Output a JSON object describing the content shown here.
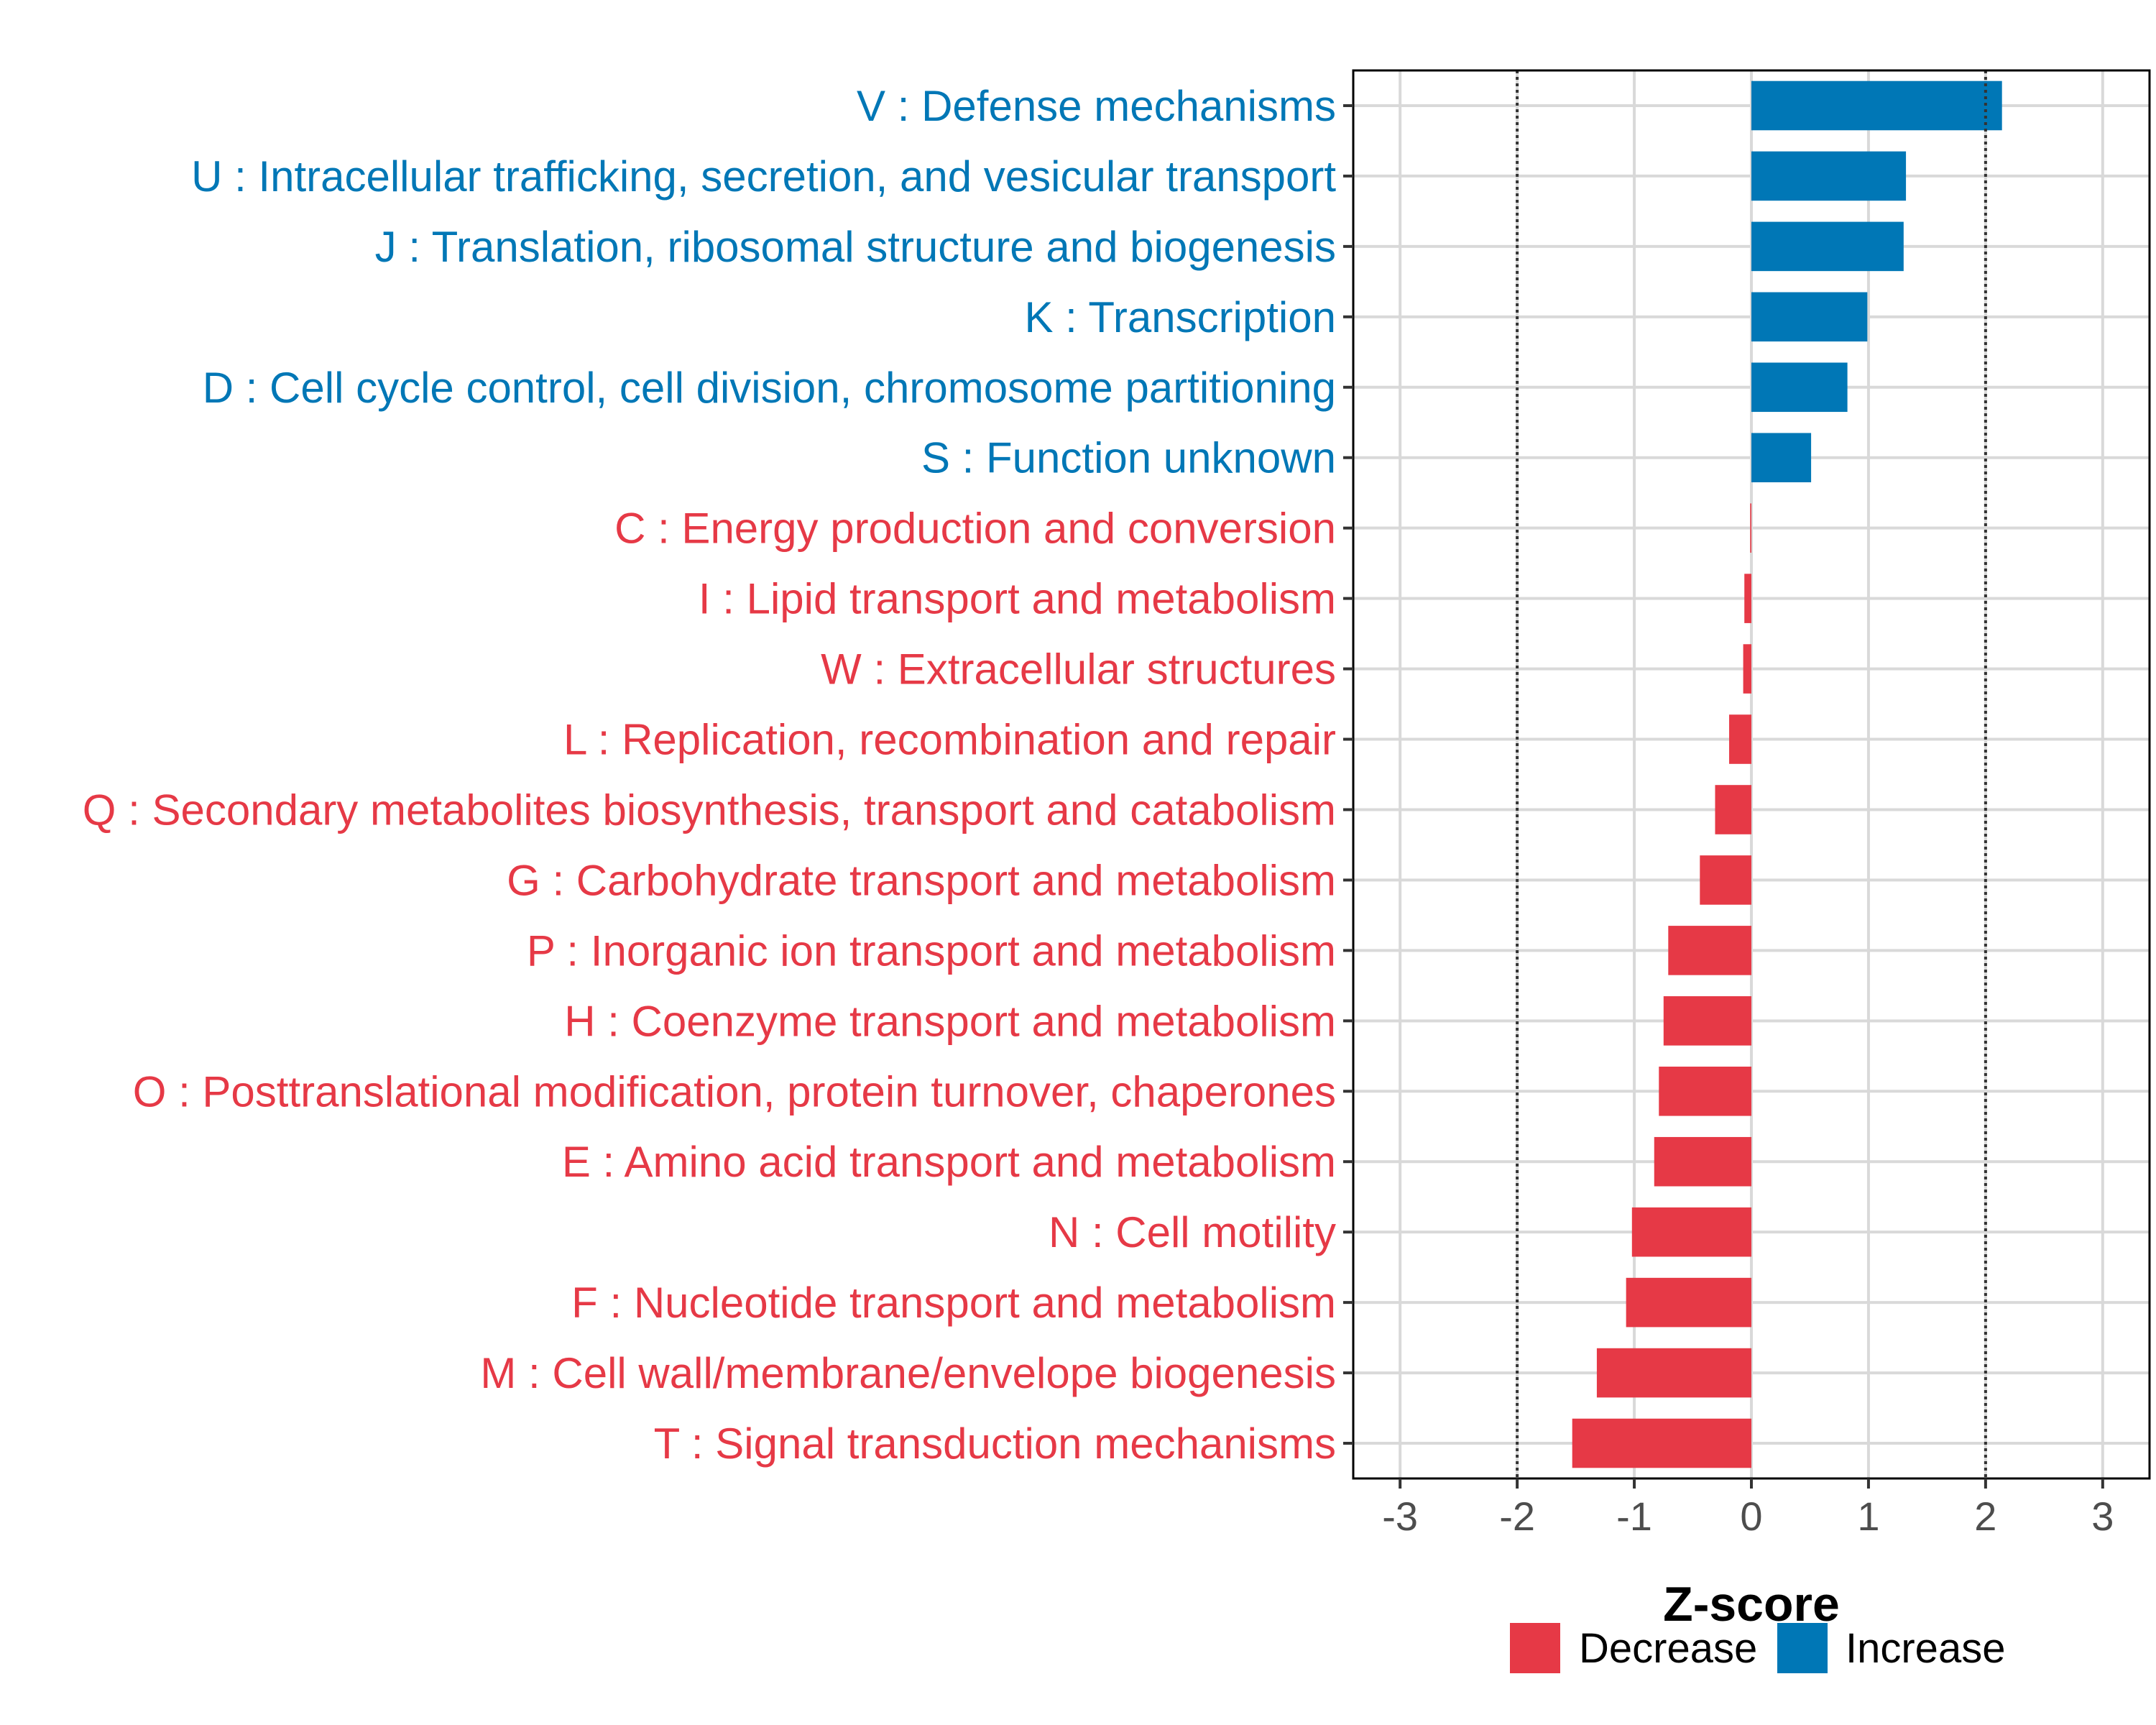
{
  "chart_data": {
    "type": "bar",
    "orientation": "horizontal",
    "xlabel": "Z-score",
    "xlim": [
      -3.4,
      3.4
    ],
    "xticks": [
      -3,
      -2,
      -1,
      0,
      1,
      2,
      3
    ],
    "tick_labels": [
      "-3",
      "-2",
      "-1",
      "0",
      "1",
      "2",
      "3"
    ],
    "reference_lines": [
      -2,
      2
    ],
    "grid": true,
    "colors": {
      "Decrease": "#E63946",
      "Increase": "#0077B6"
    },
    "legend": {
      "position": "bottom",
      "entries": [
        {
          "name": "Decrease",
          "color": "#E63946"
        },
        {
          "name": "Increase",
          "color": "#0077B6"
        }
      ]
    },
    "categories": [
      "V : Defense mechanisms",
      "U : Intracellular trafficking, secretion, and vesicular transport",
      "J : Translation, ribosomal structure and biogenesis",
      "K : Transcription",
      "D : Cell cycle control, cell division, chromosome partitioning",
      "S : Function unknown",
      "C : Energy production and conversion",
      "I : Lipid transport and metabolism",
      "W : Extracellular structures",
      "L : Replication, recombination and repair",
      "Q : Secondary metabolites biosynthesis, transport and catabolism",
      "G : Carbohydrate transport and metabolism",
      "P : Inorganic ion transport and metabolism",
      "H : Coenzyme transport and metabolism",
      "O : Posttranslational modification, protein turnover, chaperones",
      "E : Amino acid transport and metabolism",
      "N : Cell motility",
      "F : Nucleotide transport and metabolism",
      "M : Cell wall/membrane/envelope biogenesis",
      "T : Signal transduction mechanisms"
    ],
    "values": [
      2.14,
      1.32,
      1.3,
      0.99,
      0.82,
      0.51,
      -0.01,
      -0.06,
      -0.07,
      -0.19,
      -0.31,
      -0.44,
      -0.71,
      -0.75,
      -0.79,
      -0.83,
      -1.02,
      -1.07,
      -1.32,
      -1.53
    ],
    "groups": [
      "Increase",
      "Increase",
      "Increase",
      "Increase",
      "Increase",
      "Increase",
      "Decrease",
      "Decrease",
      "Decrease",
      "Decrease",
      "Decrease",
      "Decrease",
      "Decrease",
      "Decrease",
      "Decrease",
      "Decrease",
      "Decrease",
      "Decrease",
      "Decrease",
      "Decrease"
    ]
  }
}
